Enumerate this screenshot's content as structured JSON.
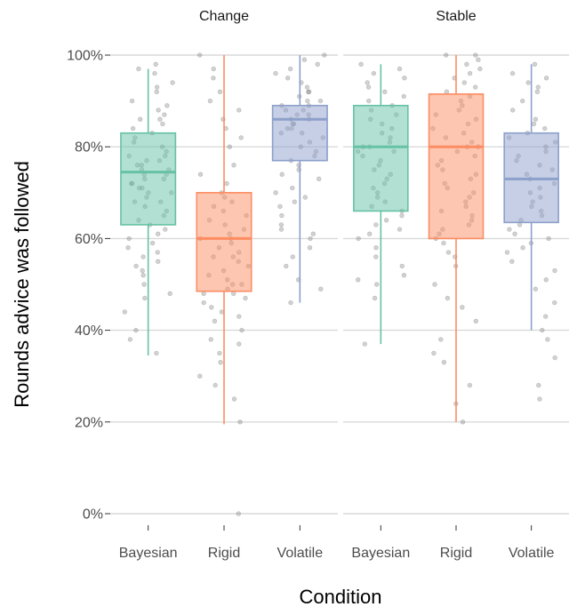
{
  "chart_data": {
    "type": "box",
    "xlabel": "Condition",
    "ylabel": "Rounds advice was followed",
    "y_ticks": [
      "0%",
      "20%",
      "40%",
      "60%",
      "80%",
      "100%"
    ],
    "y_tick_values": [
      0,
      20,
      40,
      60,
      80,
      100
    ],
    "ylim": [
      0,
      100
    ],
    "categories": [
      "Bayesian",
      "Rigid",
      "Volatile"
    ],
    "colors": {
      "Bayesian": "#66c2a5",
      "Rigid": "#fc8d62",
      "Volatile": "#8da0cb"
    },
    "grid": true,
    "facets": [
      {
        "label": "Change",
        "boxes": [
          {
            "category": "Bayesian",
            "min": 34.5,
            "q1": 63,
            "median": 74.5,
            "q3": 83,
            "max": 97,
            "points": [
              98,
              97,
              96,
              94,
              93,
              92,
              90,
              89,
              88,
              87,
              86,
              86,
              85,
              84,
              83,
              82,
              81,
              80,
              79,
              78,
              78,
              77,
              77,
              76,
              76,
              75,
              75,
              74,
              74,
              73,
              73,
              72,
              72,
              71,
              71,
              70,
              70,
              69,
              68,
              68,
              67,
              66,
              65,
              64,
              63,
              62,
              61,
              60,
              59,
              58,
              57,
              56,
              55,
              54,
              53,
              52,
              50,
              48,
              47,
              44,
              40,
              38,
              35
            ]
          },
          {
            "category": "Rigid",
            "min": 19.5,
            "q1": 48.5,
            "median": 60,
            "q3": 70,
            "max": 100,
            "points": [
              100,
              97,
              95,
              92,
              90,
              88,
              86,
              84,
              82,
              80,
              76,
              74,
              72,
              70,
              69,
              68,
              67,
              66,
              65,
              64,
              63,
              62,
              61,
              60,
              60,
              59,
              58,
              57,
              56,
              56,
              55,
              54,
              53,
              52,
              51,
              50,
              50,
              49,
              48,
              48,
              47,
              46,
              45,
              44,
              43,
              42,
              40,
              38,
              37,
              35,
              33,
              30,
              28,
              25,
              20,
              0
            ]
          },
          {
            "category": "Volatile",
            "min": 46,
            "q1": 77,
            "median": 86,
            "q3": 89,
            "max": 100,
            "points": [
              100,
              99,
              98,
              97,
              96,
              95,
              94,
              93,
              92,
              92,
              91,
              90,
              90,
              89,
              89,
              88,
              88,
              87,
              87,
              86,
              86,
              85,
              85,
              84,
              84,
              83,
              83,
              82,
              81,
              80,
              79,
              78,
              77,
              76,
              75,
              74,
              73,
              71,
              70,
              69,
              68,
              67,
              65,
              63,
              62,
              61,
              60,
              58,
              56,
              54,
              51,
              49,
              46
            ]
          }
        ]
      },
      {
        "label": "Stable",
        "boxes": [
          {
            "category": "Bayesian",
            "min": 37,
            "q1": 66,
            "median": 80,
            "q3": 89,
            "max": 98,
            "points": [
              98,
              97,
              96,
              95,
              94,
              93,
              92,
              91,
              90,
              89,
              88,
              87,
              86,
              85,
              84,
              83,
              82,
              81,
              80,
              80,
              79,
              79,
              78,
              77,
              76,
              75,
              74,
              73,
              72,
              71,
              70,
              69,
              68,
              67,
              66,
              65,
              64,
              63,
              62,
              61,
              60,
              58,
              56,
              54,
              52,
              51,
              50,
              47,
              37
            ]
          },
          {
            "category": "Rigid",
            "min": 20,
            "q1": 60,
            "median": 80,
            "q3": 91.5,
            "max": 100,
            "points": [
              100,
              100,
              99,
              98,
              97,
              96,
              95,
              94,
              93,
              92,
              91,
              90,
              89,
              88,
              87,
              86,
              85,
              84,
              83,
              82,
              81,
              80,
              80,
              79,
              78,
              77,
              76,
              75,
              74,
              73,
              72,
              71,
              70,
              69,
              68,
              67,
              66,
              65,
              64,
              63,
              62,
              61,
              60,
              59,
              57,
              56,
              54,
              50,
              47,
              45,
              42,
              38,
              35,
              33,
              28,
              24,
              20
            ]
          },
          {
            "category": "Volatile",
            "min": 40,
            "q1": 63.5,
            "median": 73,
            "q3": 83,
            "max": 98,
            "points": [
              98,
              96,
              95,
              94,
              93,
              92,
              90,
              88,
              86,
              85,
              84,
              83,
              82,
              81,
              80,
              79,
              78,
              77,
              76,
              75,
              74,
              73,
              72,
              71,
              70,
              69,
              68,
              67,
              66,
              65,
              64,
              63,
              62,
              61,
              60,
              59,
              58,
              57,
              55,
              53,
              51,
              49,
              46,
              43,
              40,
              38,
              34,
              28,
              25
            ]
          }
        ]
      }
    ]
  }
}
